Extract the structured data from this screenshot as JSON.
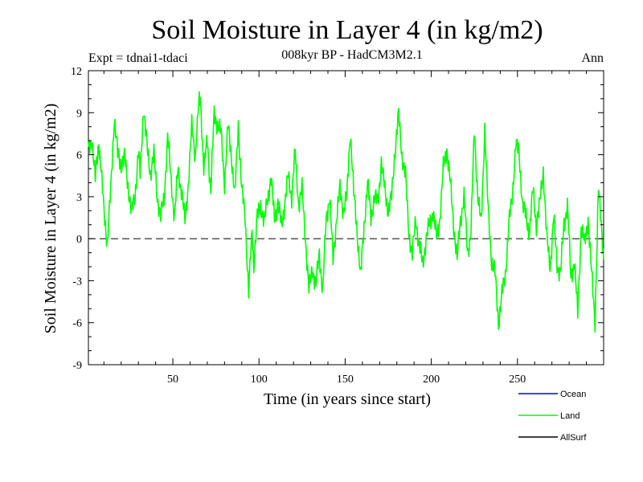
{
  "chart_data": {
    "type": "line",
    "title": "Soil Moisture in Layer 4 (in kg/m2)",
    "subtitle": "008kyr BP - HadCM3M2.1",
    "expt_label": "Expt = tdnai1-tdaci",
    "season_label": "Ann",
    "xlabel": "Time (in years since start)",
    "ylabel": "Soil Moisture in Layer 4 (in kg/m2)",
    "xlim": [
      1,
      300
    ],
    "ylim": [
      -9,
      12
    ],
    "x_ticks": [
      50,
      100,
      150,
      200,
      250
    ],
    "y_ticks": [
      -9,
      -6,
      -3,
      0,
      3,
      6,
      9,
      12
    ],
    "y_tick_labels": [
      "-9",
      "-6",
      "-3",
      "0",
      "3",
      "6",
      "9",
      "12"
    ],
    "zero_line": true,
    "legend": [
      {
        "name": "Ocean",
        "color": "#0000ff"
      },
      {
        "name": "Land",
        "color": "#00ff00"
      },
      {
        "name": "AllSurf",
        "color": "#000000"
      }
    ],
    "series": [
      {
        "name": "Land",
        "color": "#00ff00",
        "anchors": [
          [
            1,
            6.2
          ],
          [
            3,
            7.2
          ],
          [
            5,
            4.2
          ],
          [
            7,
            7.0
          ],
          [
            8,
            5.5
          ],
          [
            10,
            2.0
          ],
          [
            12,
            -0.3
          ],
          [
            14,
            3.5
          ],
          [
            16,
            8.7
          ],
          [
            18,
            6.0
          ],
          [
            20,
            5.3
          ],
          [
            22,
            5.8
          ],
          [
            24,
            3.8
          ],
          [
            26,
            1.8
          ],
          [
            28,
            3.0
          ],
          [
            30,
            6.2
          ],
          [
            31,
            4.5
          ],
          [
            33,
            9.5
          ],
          [
            35,
            6.5
          ],
          [
            37,
            4.7
          ],
          [
            39,
            6.0
          ],
          [
            41,
            3.0
          ],
          [
            43,
            1.5
          ],
          [
            45,
            3.0
          ],
          [
            47,
            7.3
          ],
          [
            49,
            4.2
          ],
          [
            51,
            1.5
          ],
          [
            53,
            5.0
          ],
          [
            55,
            3.5
          ],
          [
            57,
            1.2
          ],
          [
            59,
            4.0
          ],
          [
            61,
            8.0
          ],
          [
            63,
            6.0
          ],
          [
            65,
            9.5
          ],
          [
            66,
            10.0
          ],
          [
            68,
            5.0
          ],
          [
            70,
            7.0
          ],
          [
            72,
            3.5
          ],
          [
            74,
            8.8
          ],
          [
            76,
            8.2
          ],
          [
            78,
            7.5
          ],
          [
            80,
            4.0
          ],
          [
            82,
            8.0
          ],
          [
            84,
            6.0
          ],
          [
            86,
            3.0
          ],
          [
            88,
            8.2
          ],
          [
            90,
            3.5
          ],
          [
            92,
            1.5
          ],
          [
            94,
            -3.8
          ],
          [
            96,
            0.5
          ],
          [
            97,
            -1.8
          ],
          [
            99,
            1.5
          ],
          [
            101,
            2.5
          ],
          [
            103,
            1.0
          ],
          [
            105,
            3.0
          ],
          [
            107,
            4.2
          ],
          [
            109,
            1.5
          ],
          [
            111,
            2.5
          ],
          [
            113,
            1.0
          ],
          [
            115,
            2.5
          ],
          [
            117,
            4.5
          ],
          [
            119,
            3.0
          ],
          [
            121,
            6.2
          ],
          [
            123,
            2.5
          ],
          [
            125,
            3.5
          ],
          [
            127,
            0.0
          ],
          [
            129,
            -3.8
          ],
          [
            131,
            -2.0
          ],
          [
            133,
            -3.5
          ],
          [
            135,
            -1.0
          ],
          [
            137,
            -3.8
          ],
          [
            139,
            1.5
          ],
          [
            141,
            3.0
          ],
          [
            143,
            -1.5
          ],
          [
            145,
            1.5
          ],
          [
            147,
            3.5
          ],
          [
            149,
            2.0
          ],
          [
            151,
            3.0
          ],
          [
            153,
            7.8
          ],
          [
            155,
            3.2
          ],
          [
            157,
            0.5
          ],
          [
            159,
            -2.8
          ],
          [
            161,
            1.0
          ],
          [
            163,
            4.0
          ],
          [
            165,
            1.5
          ],
          [
            167,
            3.0
          ],
          [
            169,
            2.5
          ],
          [
            171,
            5.5
          ],
          [
            173,
            3.5
          ],
          [
            175,
            2.0
          ],
          [
            177,
            3.0
          ],
          [
            179,
            6.5
          ],
          [
            181,
            8.8
          ],
          [
            183,
            6.0
          ],
          [
            185,
            4.5
          ],
          [
            187,
            0.5
          ],
          [
            189,
            -1.2
          ],
          [
            191,
            1.5
          ],
          [
            193,
            -0.5
          ],
          [
            195,
            -1.8
          ],
          [
            197,
            0.0
          ],
          [
            199,
            1.0
          ],
          [
            201,
            2.0
          ],
          [
            203,
            0.0
          ],
          [
            205,
            1.5
          ],
          [
            207,
            5.0
          ],
          [
            209,
            6.5
          ],
          [
            211,
            4.0
          ],
          [
            213,
            1.0
          ],
          [
            215,
            -1.5
          ],
          [
            217,
            1.5
          ],
          [
            219,
            3.0
          ],
          [
            221,
            -1.0
          ],
          [
            223,
            0.5
          ],
          [
            225,
            7.8
          ],
          [
            227,
            3.0
          ],
          [
            229,
            1.0
          ],
          [
            231,
            8.0
          ],
          [
            233,
            2.0
          ],
          [
            235,
            -1.5
          ],
          [
            237,
            -2.5
          ],
          [
            239,
            -6.0
          ],
          [
            241,
            -4.0
          ],
          [
            243,
            -2.5
          ],
          [
            245,
            1.0
          ],
          [
            247,
            3.0
          ],
          [
            249,
            6.8
          ],
          [
            251,
            6.0
          ],
          [
            253,
            2.5
          ],
          [
            255,
            1.5
          ],
          [
            257,
            0.5
          ],
          [
            259,
            3.5
          ],
          [
            261,
            1.0
          ],
          [
            263,
            2.5
          ],
          [
            265,
            5.0
          ],
          [
            267,
            0.0
          ],
          [
            269,
            -2.0
          ],
          [
            271,
            1.5
          ],
          [
            273,
            -1.8
          ],
          [
            275,
            -2.5
          ],
          [
            277,
            1.0
          ],
          [
            279,
            2.5
          ],
          [
            281,
            -2.8
          ],
          [
            283,
            -1.5
          ],
          [
            285,
            -5.5
          ],
          [
            287,
            1.0
          ],
          [
            289,
            -0.5
          ],
          [
            291,
            1.5
          ],
          [
            293,
            -2.5
          ],
          [
            295,
            -5.8
          ],
          [
            297,
            3.5
          ],
          [
            299,
            0.5
          ],
          [
            300,
            -1.5
          ]
        ]
      }
    ]
  }
}
